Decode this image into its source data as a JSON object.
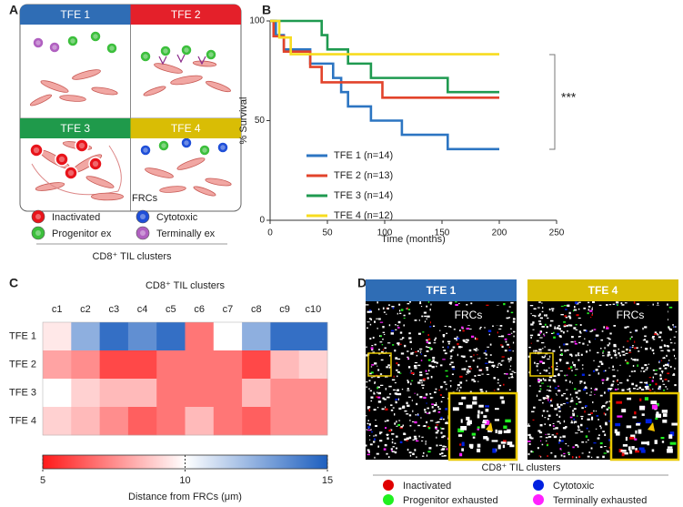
{
  "panel_labels": [
    "A",
    "B",
    "C",
    "D"
  ],
  "panel_a": {
    "quadrants": [
      {
        "label": "TFE 1",
        "color": "#2f6db5"
      },
      {
        "label": "TFE 2",
        "color": "#e4202a"
      },
      {
        "label": "TFE 3",
        "color": "#1f9a4b"
      },
      {
        "label": "TFE 4",
        "color": "#d9bd05"
      }
    ],
    "frc_label": "FRCs",
    "legend": [
      {
        "name": "Inactivated",
        "color": "#e8141b"
      },
      {
        "name": "Cytotoxic",
        "color": "#1f4fd8"
      },
      {
        "name": "Progenitor ex",
        "color": "#3cbf3c"
      },
      {
        "name": "Terminally ex",
        "color": "#b060c0"
      }
    ],
    "title": "CD8⁺ TIL clusters"
  },
  "chart_data": [
    {
      "type": "line",
      "step": "post",
      "xlabel": "Time (months)",
      "ylabel": "% Survival",
      "xlim": [
        0,
        250
      ],
      "ylim": [
        0,
        100
      ],
      "xticks": [
        0,
        50,
        100,
        150,
        200,
        250
      ],
      "yticks": [
        0,
        50,
        100
      ],
      "annotation": "***",
      "legend": "lower left",
      "series": [
        {
          "name": "TFE 1 (n=14)",
          "color": "#2c75c2",
          "x": [
            0,
            5,
            12,
            35,
            55,
            62,
            68,
            88,
            115,
            155,
            200
          ],
          "values": [
            100,
            92.9,
            85.7,
            78.6,
            71.4,
            64.3,
            57.1,
            50,
            42.9,
            35.7,
            35.7
          ]
        },
        {
          "name": "TFE 2 (n=13)",
          "color": "#e2432b",
          "x": [
            0,
            3,
            12,
            35,
            45,
            98,
            200
          ],
          "values": [
            100,
            92.3,
            84.6,
            76.9,
            69.2,
            61.5,
            61.5
          ]
        },
        {
          "name": "TFE 3 (n=14)",
          "color": "#1f9a50",
          "x": [
            0,
            45,
            50,
            68,
            88,
            155,
            200
          ],
          "values": [
            100,
            92.9,
            85.7,
            78.6,
            71.4,
            64.3,
            64.3
          ]
        },
        {
          "name": "TFE 4 (n=12)",
          "color": "#f7dc1f",
          "x": [
            0,
            8,
            18,
            200
          ],
          "values": [
            100,
            91.7,
            83.3,
            83.3
          ]
        }
      ]
    },
    {
      "type": "heatmap",
      "title": "CD8⁺ TIL clusters",
      "categories": [
        "c1",
        "c2",
        "c3",
        "c4",
        "c5",
        "c6",
        "c7",
        "c8",
        "c9",
        "c10"
      ],
      "rows": [
        "TFE 1",
        "TFE 2",
        "TFE 3",
        "TFE 4"
      ],
      "values": [
        [
          9.5,
          12.5,
          14.5,
          13.5,
          14.5,
          7,
          10,
          12.5,
          14.5,
          14.5
        ],
        [
          8,
          7.5,
          6,
          6,
          7,
          7,
          7,
          6,
          8.5,
          9
        ],
        [
          10,
          9,
          8.5,
          8.5,
          7,
          7,
          7,
          8.5,
          7.5,
          7.5
        ],
        [
          9,
          8.5,
          7.5,
          6.5,
          7,
          8.5,
          7,
          6.5,
          7.5,
          7.5
        ]
      ],
      "cmap": [
        "#ff1a1a",
        "#ffffff",
        "#1d5fbf"
      ],
      "clim": [
        5,
        15
      ],
      "cticks": [
        5,
        10,
        15
      ],
      "clabel": "Distance from FRCs (μm)"
    }
  ],
  "panel_d": {
    "images": [
      {
        "label": "TFE 1",
        "color": "#2f6db5",
        "inset": "FRCs"
      },
      {
        "label": "TFE 4",
        "color": "#d9bd05",
        "inset": "FRCs"
      }
    ],
    "title": "CD8⁺ TIL clusters",
    "legend": [
      {
        "name": "Inactivated",
        "color": "#e00000"
      },
      {
        "name": "Cytotoxic",
        "color": "#0020e0"
      },
      {
        "name": "Progenitor exhausted",
        "color": "#20f020"
      },
      {
        "name": "Terminally exhausted",
        "color": "#ff20ff"
      }
    ]
  }
}
